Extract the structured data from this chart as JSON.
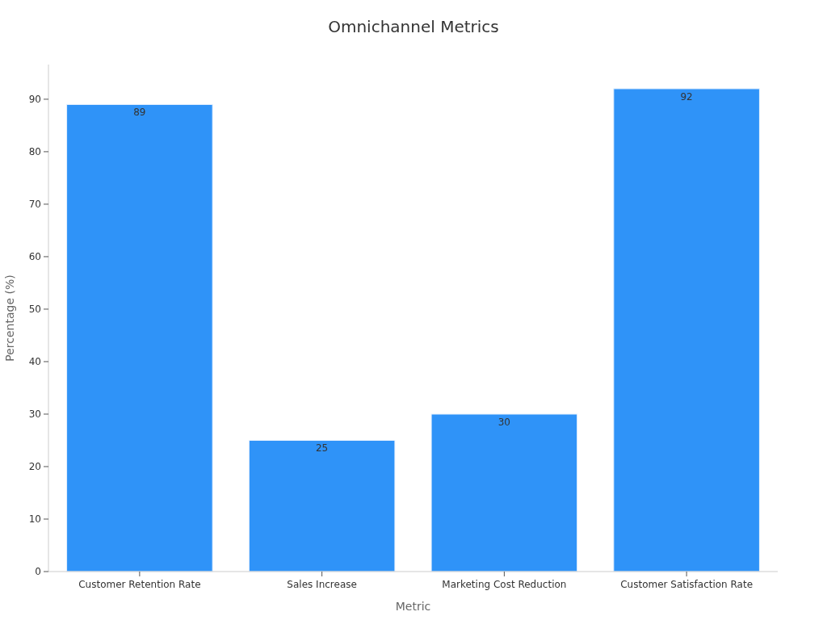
{
  "chart_data": {
    "type": "bar",
    "title": "Omnichannel Metrics",
    "xlabel": "Metric",
    "ylabel": "Percentage (%)",
    "categories": [
      "Customer Retention Rate",
      "Sales Increase",
      "Marketing Cost Reduction",
      "Customer Satisfaction Rate"
    ],
    "values": [
      89,
      25,
      30,
      92
    ],
    "color": "#2f93f8",
    "ylim": [
      0,
      96.6
    ],
    "yticks": [
      0,
      10,
      20,
      30,
      40,
      50,
      60,
      70,
      80,
      90
    ],
    "grid": false,
    "data_labels": true
  }
}
